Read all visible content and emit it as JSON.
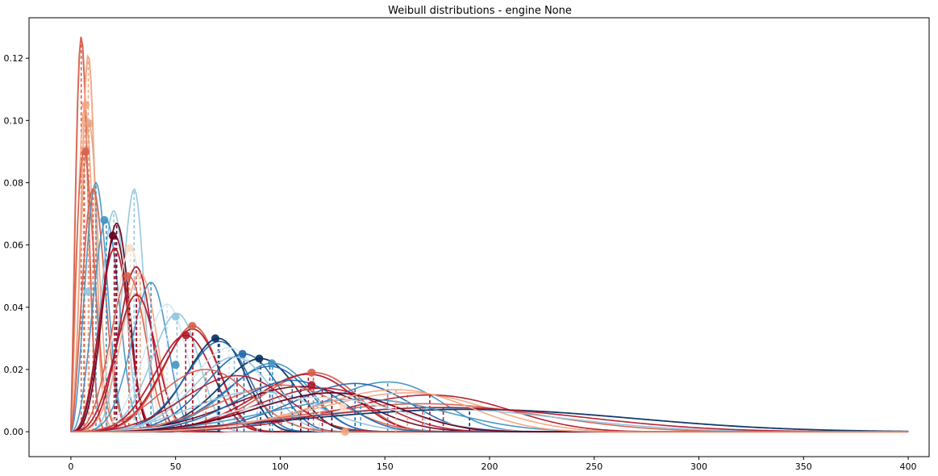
{
  "chart_data": {
    "type": "line",
    "title": "Weibull distributions - engine None",
    "xlabel": "",
    "ylabel": "",
    "xlim": [
      -20,
      410
    ],
    "ylim": [
      -0.008,
      0.133
    ],
    "x_ticks": [
      0,
      50,
      100,
      150,
      200,
      250,
      300,
      350,
      400
    ],
    "y_ticks": [
      0.0,
      0.02,
      0.04,
      0.06,
      0.08,
      0.1,
      0.12
    ],
    "x_tick_labels": [
      "0",
      "50",
      "100",
      "150",
      "200",
      "250",
      "300",
      "350",
      "400"
    ],
    "y_tick_labels": [
      "0.00",
      "0.02",
      "0.04",
      "0.06",
      "0.08",
      "0.10",
      "0.12"
    ],
    "grid": false,
    "legend": "none",
    "x_domain": [
      0,
      400
    ],
    "series": [
      {
        "peak_x": 5,
        "peak_y": 0.127,
        "alpha": 6.5,
        "beta": 2.2,
        "color": "#d6604d",
        "width": 2.0
      },
      {
        "peak_x": 8,
        "peak_y": 0.121,
        "alpha": 9.5,
        "beta": 3.0,
        "color": "#f4a582",
        "width": 2.0
      },
      {
        "peak_x": 7,
        "peak_y": 0.105,
        "alpha": 8.5,
        "beta": 2.3,
        "color": "#f4a582",
        "width": 1.6
      },
      {
        "peak_x": 9,
        "peak_y": 0.099,
        "alpha": 10.5,
        "beta": 2.6,
        "color": "#e7a585",
        "width": 1.6
      },
      {
        "peak_x": 7,
        "peak_y": 0.09,
        "alpha": 8.8,
        "beta": 2.0,
        "color": "#d6604d",
        "width": 1.6
      },
      {
        "peak_x": 12,
        "peak_y": 0.08,
        "alpha": 14,
        "beta": 2.8,
        "color": "#4393c3",
        "width": 1.6
      },
      {
        "peak_x": 11,
        "peak_y": 0.078,
        "alpha": 13,
        "beta": 2.5,
        "color": "#d6604d",
        "width": 1.8
      },
      {
        "peak_x": 30,
        "peak_y": 0.078,
        "alpha": 31,
        "beta": 6.5,
        "color": "#92c5de",
        "width": 1.6,
        "dash": true
      },
      {
        "peak_x": 20,
        "peak_y": 0.071,
        "alpha": 22,
        "beta": 4.0,
        "color": "#92c5de",
        "width": 1.6,
        "dash": true
      },
      {
        "peak_x": 17,
        "peak_y": 0.068,
        "alpha": 19,
        "beta": 3.2,
        "color": "#4393c3",
        "width": 1.6
      },
      {
        "peak_x": 22,
        "peak_y": 0.067,
        "alpha": 23.5,
        "beta": 4.0,
        "color": "#67001f",
        "width": 1.8
      },
      {
        "peak_x": 21,
        "peak_y": 0.063,
        "alpha": 23,
        "beta": 3.7,
        "color": "#67001f",
        "width": 1.6
      },
      {
        "peak_x": 21,
        "peak_y": 0.059,
        "alpha": 23,
        "beta": 3.5,
        "color": "#b2182b",
        "width": 1.8
      },
      {
        "peak_x": 28,
        "peak_y": 0.059,
        "alpha": 30,
        "beta": 4.5,
        "color": "#fddbc7",
        "width": 1.6
      },
      {
        "peak_x": 31,
        "peak_y": 0.053,
        "alpha": 33,
        "beta": 4.5,
        "color": "#b2182b",
        "width": 1.8
      },
      {
        "peak_x": 33,
        "peak_y": 0.051,
        "alpha": 35,
        "beta": 4.5,
        "color": "#f4a582",
        "width": 1.6
      },
      {
        "peak_x": 28,
        "peak_y": 0.05,
        "alpha": 30,
        "beta": 3.8,
        "color": "#d6604d",
        "width": 1.6
      },
      {
        "peak_x": 38,
        "peak_y": 0.048,
        "alpha": 40,
        "beta": 5.0,
        "color": "#4393c3",
        "width": 1.6
      },
      {
        "peak_x": 32,
        "peak_y": 0.044,
        "alpha": 34,
        "beta": 3.8,
        "color": "#b2182b",
        "width": 1.8
      },
      {
        "peak_x": 45,
        "peak_y": 0.041,
        "alpha": 48,
        "beta": 5.0,
        "color": "#d1e5f0",
        "width": 1.6,
        "dash": true
      },
      {
        "peak_x": 50,
        "peak_y": 0.038,
        "alpha": 53,
        "beta": 5.0,
        "color": "#92c5de",
        "width": 1.6
      },
      {
        "peak_x": 58,
        "peak_y": 0.034,
        "alpha": 61,
        "beta": 5.0,
        "color": "#d6604d",
        "width": 2.0
      },
      {
        "peak_x": 55,
        "peak_y": 0.031,
        "alpha": 58,
        "beta": 4.5,
        "color": "#b2182b",
        "width": 1.8
      },
      {
        "peak_x": 58,
        "peak_y": 0.033,
        "alpha": 61,
        "beta": 4.8,
        "color": "#b2182b",
        "width": 1.8
      },
      {
        "peak_x": 69,
        "peak_y": 0.03,
        "alpha": 73,
        "beta": 5.5,
        "color": "#053061",
        "width": 1.8
      },
      {
        "peak_x": 70,
        "peak_y": 0.029,
        "alpha": 74,
        "beta": 5.2,
        "color": "#2166ac",
        "width": 1.6
      },
      {
        "peak_x": 75,
        "peak_y": 0.027,
        "alpha": 79,
        "beta": 5.0,
        "color": "#d1e5f0",
        "width": 1.6
      },
      {
        "peak_x": 82,
        "peak_y": 0.025,
        "alpha": 86,
        "beta": 5.3,
        "color": "#2166ac",
        "width": 1.6
      },
      {
        "peak_x": 90,
        "peak_y": 0.0235,
        "alpha": 94,
        "beta": 5.5,
        "color": "#053061",
        "width": 1.8
      },
      {
        "peak_x": 96,
        "peak_y": 0.022,
        "alpha": 100,
        "beta": 5.4,
        "color": "#4393c3",
        "width": 1.6
      },
      {
        "peak_x": 95,
        "peak_y": 0.021,
        "alpha": 99,
        "beta": 5.2,
        "color": "#2166ac",
        "width": 1.6
      },
      {
        "peak_x": 78,
        "peak_y": 0.024,
        "alpha": 82,
        "beta": 4.8,
        "color": "#92c5de",
        "width": 1.6
      },
      {
        "peak_x": 115,
        "peak_y": 0.019,
        "alpha": 120,
        "beta": 5.6,
        "color": "#d6604d",
        "width": 1.8
      },
      {
        "peak_x": 113,
        "peak_y": 0.0185,
        "alpha": 118,
        "beta": 5.3,
        "color": "#b2182b",
        "width": 1.8
      },
      {
        "peak_x": 150,
        "peak_y": 0.016,
        "alpha": 156,
        "beta": 6.0,
        "color": "#4393c3",
        "width": 1.6
      },
      {
        "peak_x": 135,
        "peak_y": 0.0155,
        "alpha": 141,
        "beta": 5.4,
        "color": "#2166ac",
        "width": 1.6
      },
      {
        "peak_x": 110,
        "peak_y": 0.0145,
        "alpha": 118,
        "beta": 4.0,
        "color": "#67001f",
        "width": 1.6
      },
      {
        "peak_x": 120,
        "peak_y": 0.014,
        "alpha": 127,
        "beta": 4.5,
        "color": "#b2182b",
        "width": 1.6
      },
      {
        "peak_x": 100,
        "peak_y": 0.015,
        "alpha": 108,
        "beta": 4.0,
        "color": "#d6604d",
        "width": 1.6
      },
      {
        "peak_x": 90,
        "peak_y": 0.013,
        "alpha": 98,
        "beta": 3.5,
        "color": "#92c5de",
        "width": 1.6
      },
      {
        "peak_x": 160,
        "peak_y": 0.0125,
        "alpha": 170,
        "beta": 4.5,
        "color": "#f4a582",
        "width": 1.6
      },
      {
        "peak_x": 170,
        "peak_y": 0.0118,
        "alpha": 180,
        "beta": 4.8,
        "color": "#b2182b",
        "width": 1.6
      },
      {
        "peak_x": 170,
        "peak_y": 0.009,
        "alpha": 185,
        "beta": 3.5,
        "color": "#d6604d",
        "width": 1.6
      },
      {
        "peak_x": 175,
        "peak_y": 0.0076,
        "alpha": 190,
        "beta": 3.2,
        "color": "#92c5de",
        "width": 1.6
      },
      {
        "peak_x": 200,
        "peak_y": 0.0072,
        "alpha": 218,
        "beta": 3.0,
        "color": "#053061",
        "width": 1.8
      },
      {
        "peak_x": 185,
        "peak_y": 0.0078,
        "alpha": 200,
        "beta": 3.2,
        "color": "#b2182b",
        "width": 1.6
      },
      {
        "peak_x": 140,
        "peak_y": 0.0105,
        "alpha": 150,
        "beta": 3.8,
        "color": "#4393c3",
        "width": 1.6
      },
      {
        "peak_x": 120,
        "peak_y": 0.011,
        "alpha": 130,
        "beta": 3.6,
        "color": "#d1e5f0",
        "width": 1.6
      },
      {
        "peak_x": 80,
        "peak_y": 0.018,
        "alpha": 86,
        "beta": 3.8,
        "color": "#b2182b",
        "width": 1.6
      },
      {
        "peak_x": 65,
        "peak_y": 0.02,
        "alpha": 71,
        "beta": 3.5,
        "color": "#d6604d",
        "width": 1.6
      },
      {
        "peak_x": 105,
        "peak_y": 0.0165,
        "alpha": 111,
        "beta": 4.8,
        "color": "#2166ac",
        "width": 1.6
      },
      {
        "peak_x": 125,
        "peak_y": 0.0125,
        "alpha": 133,
        "beta": 4.2,
        "color": "#67001f",
        "width": 1.8
      },
      {
        "peak_x": 155,
        "peak_y": 0.0135,
        "alpha": 163,
        "beta": 4.8,
        "color": "#f4a582",
        "width": 1.6
      }
    ],
    "markers": [
      {
        "x": 7,
        "y": 0.105,
        "color": "#f4a582"
      },
      {
        "x": 9,
        "y": 0.099,
        "color": "#e7a585"
      },
      {
        "x": 7,
        "y": 0.09,
        "color": "#d6604d"
      },
      {
        "x": 16,
        "y": 0.068,
        "color": "#4393c3"
      },
      {
        "x": 20,
        "y": 0.063,
        "color": "#67001f"
      },
      {
        "x": 28,
        "y": 0.059,
        "color": "#fddbc7"
      },
      {
        "x": 27,
        "y": 0.05,
        "color": "#d6604d"
      },
      {
        "x": 8,
        "y": 0.045,
        "color": "#92c5de"
      },
      {
        "x": 50,
        "y": 0.037,
        "color": "#92c5de"
      },
      {
        "x": 58,
        "y": 0.034,
        "color": "#d6604d"
      },
      {
        "x": 55,
        "y": 0.031,
        "color": "#b2182b"
      },
      {
        "x": 69,
        "y": 0.03,
        "color": "#053061"
      },
      {
        "x": 82,
        "y": 0.025,
        "color": "#2166ac"
      },
      {
        "x": 90,
        "y": 0.0235,
        "color": "#053061"
      },
      {
        "x": 96,
        "y": 0.022,
        "color": "#4393c3"
      },
      {
        "x": 50,
        "y": 0.0215,
        "color": "#4393c3"
      },
      {
        "x": 115,
        "y": 0.019,
        "color": "#d6604d"
      },
      {
        "x": 115,
        "y": 0.015,
        "color": "#b2182b"
      },
      {
        "x": 131,
        "y": 0.0,
        "color": "#f4a582"
      },
      {
        "x": 130,
        "y": 0.008,
        "color": "#fddbc7"
      }
    ]
  }
}
